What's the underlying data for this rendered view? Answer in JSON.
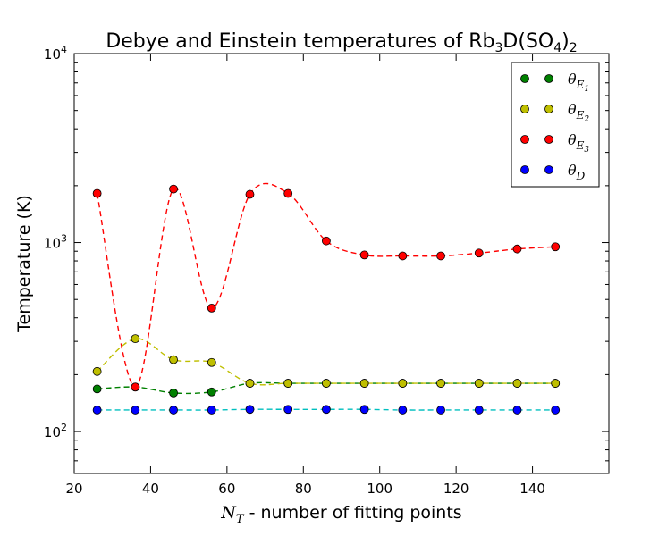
{
  "chart_data": {
    "type": "scatter",
    "title": "Debye and Einstein temperatures of Rb₃D(SO₄)₂",
    "xlabel": "N_T - number of fitting points",
    "ylabel": "Temperature (K)",
    "xlim": [
      20,
      160
    ],
    "ylim": [
      60,
      10000
    ],
    "y_scale": "log",
    "grid": false,
    "legend_position": "top-right",
    "x_ticks": [
      20,
      40,
      60,
      80,
      100,
      120,
      140
    ],
    "y_ticks": [
      100,
      1000,
      10000
    ],
    "y_tick_labels": [
      "10^2",
      "10^3",
      "10^4"
    ],
    "x": [
      26,
      36,
      46,
      56,
      66,
      76,
      86,
      96,
      106,
      116,
      126,
      136,
      146
    ],
    "series": [
      {
        "name": "θ_E1",
        "color": "#008000",
        "values": [
          168,
          172,
          160,
          162,
          180,
          180,
          180,
          180,
          180,
          180,
          180,
          180,
          180
        ]
      },
      {
        "name": "θ_E2",
        "color": "#bfbf00",
        "values": [
          208,
          310,
          240,
          232,
          180,
          180,
          180,
          180,
          180,
          180,
          180,
          180,
          180
        ]
      },
      {
        "name": "θ_E3",
        "color": "#ff0000",
        "values": [
          1820,
          172,
          1920,
          450,
          1800,
          1820,
          1020,
          860,
          850,
          850,
          880,
          925,
          950
        ]
      },
      {
        "name": "θ_D",
        "color": "#0000ff",
        "values": [
          130,
          130,
          130,
          130,
          131,
          131,
          131,
          131,
          130,
          130,
          130,
          130,
          130
        ]
      }
    ]
  }
}
